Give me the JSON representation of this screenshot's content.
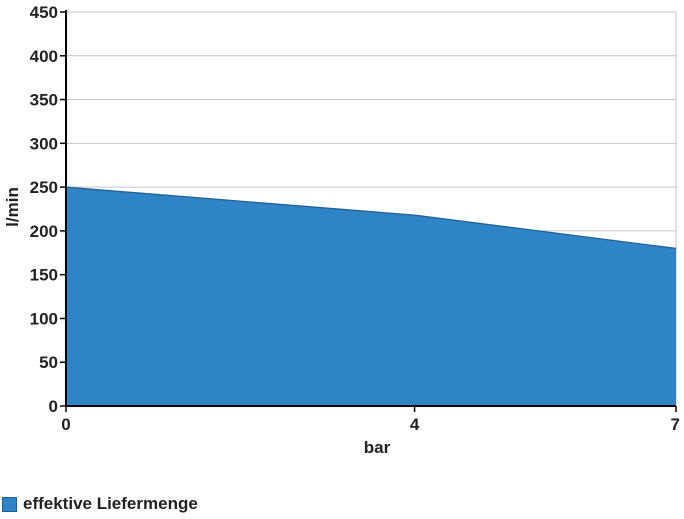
{
  "chart_data": {
    "type": "area",
    "x": [
      0,
      4,
      7
    ],
    "series": [
      {
        "name": "effektive Liefermenge",
        "values": [
          250,
          218,
          180
        ],
        "color": "#2f84c6"
      }
    ],
    "xlabel": "bar",
    "ylabel": "l/min",
    "xlim": [
      0,
      7
    ],
    "ylim": [
      0,
      450
    ],
    "x_ticks": [
      0,
      4,
      7
    ],
    "y_ticks": [
      0,
      50,
      100,
      150,
      200,
      250,
      300,
      350,
      400,
      450
    ],
    "grid": true,
    "legend_position": "bottom-left"
  }
}
